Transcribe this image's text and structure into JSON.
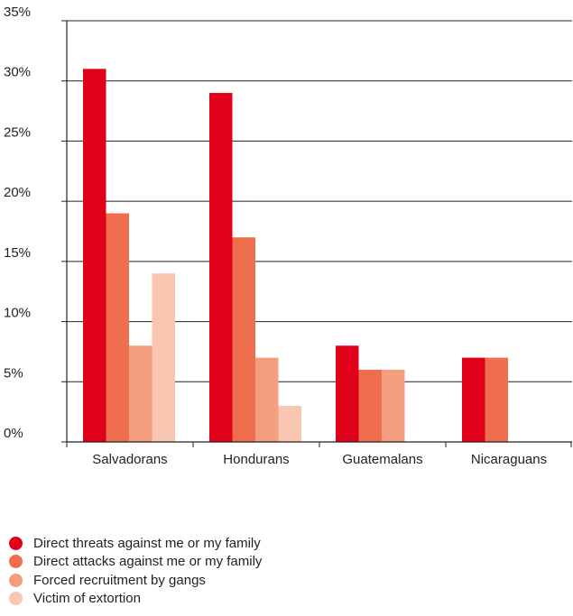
{
  "chart_data": {
    "type": "bar",
    "categories": [
      "Salvadorans",
      "Hondurans",
      "Guatemalans",
      "Nicaraguans"
    ],
    "series": [
      {
        "name": "Direct threats against me or my family",
        "values": [
          31,
          29,
          8,
          7
        ],
        "color": "#e1001a"
      },
      {
        "name": "Direct attacks against me or my family",
        "values": [
          19,
          17,
          6,
          7
        ],
        "color": "#ee6e4e"
      },
      {
        "name": "Forced recruitment by gangs",
        "values": [
          8,
          7,
          6,
          null
        ],
        "color": "#f49e80"
      },
      {
        "name": "Victim of extortion",
        "values": [
          14,
          3,
          null,
          null
        ],
        "color": "#f8c6b1"
      }
    ],
    "ylim": [
      0,
      35
    ],
    "yticks": [
      "0%",
      "5%",
      "10%",
      "15%",
      "20%",
      "25%",
      "30%",
      "35%"
    ],
    "grid": true,
    "legend_position": "bottom-left"
  }
}
